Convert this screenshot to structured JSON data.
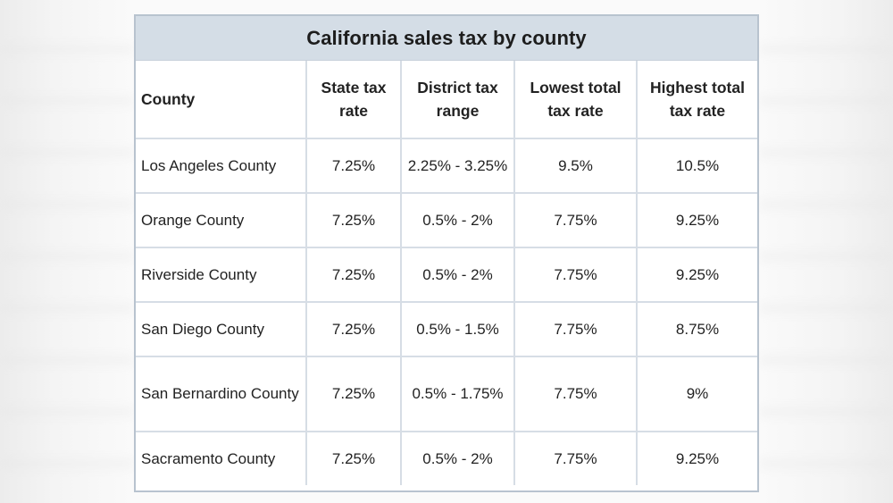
{
  "table": {
    "title": "California sales tax by county",
    "headers": [
      "County",
      "State tax rate",
      "District tax range",
      "Lowest total tax rate",
      "Highest total tax rate"
    ],
    "rows": [
      [
        "Los Angeles County",
        "7.25%",
        "2.25% - 3.25%",
        "9.5%",
        "10.5%"
      ],
      [
        "Orange County",
        "7.25%",
        "0.5% - 2%",
        "7.75%",
        "9.25%"
      ],
      [
        "Riverside County",
        "7.25%",
        "0.5% - 2%",
        "7.75%",
        "9.25%"
      ],
      [
        "San Diego County",
        "7.25%",
        "0.5% - 1.5%",
        "7.75%",
        "8.75%"
      ],
      [
        "San Bernardino County",
        "7.25%",
        "0.5% - 1.75%",
        "7.75%",
        "9%"
      ],
      [
        "Sacramento County",
        "7.25%",
        "0.5% - 2%",
        "7.75%",
        "9.25%"
      ]
    ]
  }
}
